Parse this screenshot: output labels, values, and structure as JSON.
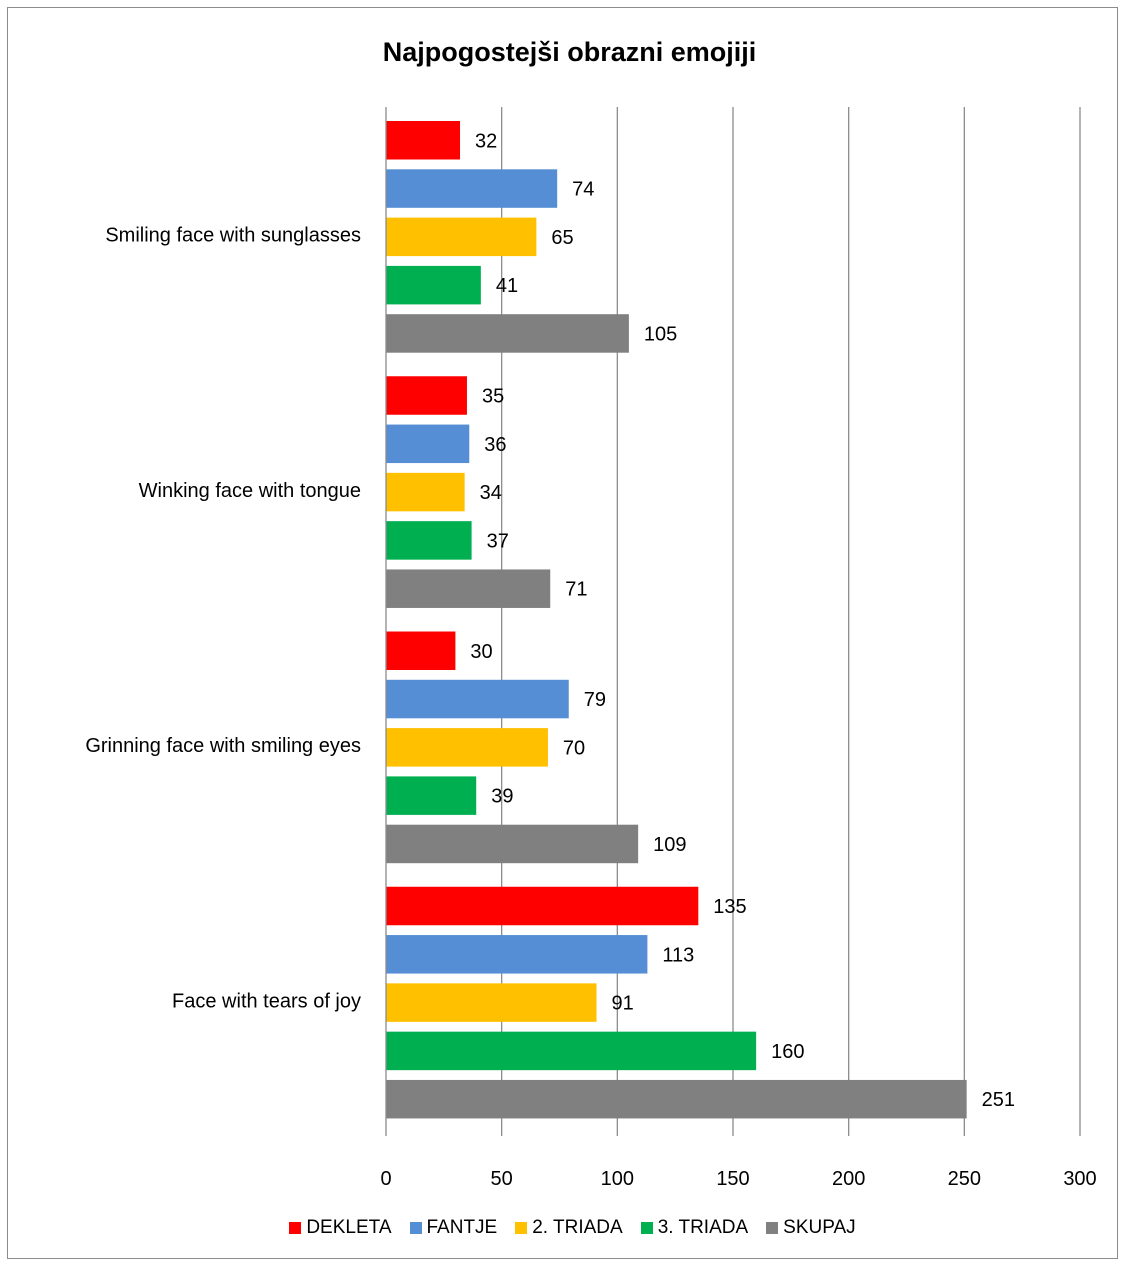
{
  "chart_data": {
    "type": "bar",
    "orientation": "horizontal",
    "title": "Najpogostejši obrazni emojiji",
    "categories": [
      "Smiling face with sunglasses",
      "Winking face with tongue",
      "Grinning face with smiling eyes",
      "Face with tears of joy"
    ],
    "series": [
      {
        "name": "DEKLETA",
        "color": "#ff0000",
        "values": [
          32,
          35,
          30,
          135
        ]
      },
      {
        "name": "FANTJE",
        "color": "#558ed5",
        "values": [
          74,
          36,
          79,
          113
        ]
      },
      {
        "name": "2. TRIADA",
        "color": "#ffc000",
        "values": [
          65,
          34,
          70,
          91
        ]
      },
      {
        "name": "3. TRIADA",
        "color": "#00b050",
        "values": [
          41,
          37,
          39,
          160
        ]
      },
      {
        "name": "SKUPAJ",
        "color": "#808080",
        "values": [
          105,
          71,
          109,
          251
        ]
      }
    ],
    "xlim": [
      0,
      300
    ],
    "xticks": [
      0,
      50,
      100,
      150,
      200,
      250,
      300
    ],
    "grid": true,
    "data_labels": true,
    "legend_position": "bottom"
  }
}
